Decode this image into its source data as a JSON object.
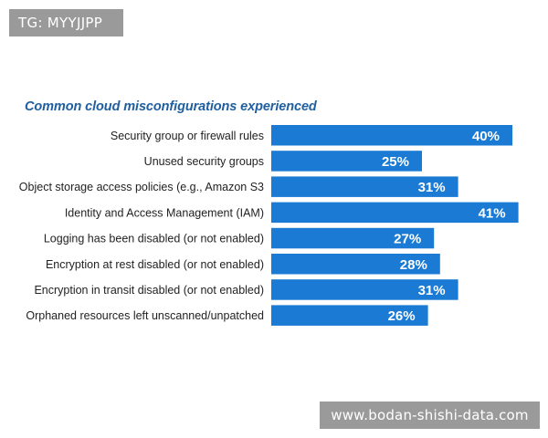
{
  "watermarks": {
    "top": "TG: MYYJJPP",
    "bottom": "www.bodan-shishi-data.com"
  },
  "chart_data": {
    "type": "bar",
    "orientation": "horizontal",
    "title": "Common cloud misconfigurations experienced",
    "categories": [
      "Security group or firewall rules",
      "Unused security groups",
      "Object storage access policies (e.g., Amazon S3",
      "Identity and Access Management (IAM)",
      "Logging has been disabled (or not enabled)",
      "Encryption at rest disabled (or not enabled)",
      "Encryption in transit disabled (or not enabled)",
      "Orphaned resources left unscanned/unpatched"
    ],
    "values": [
      40,
      25,
      31,
      41,
      27,
      28,
      31,
      26
    ],
    "value_labels": [
      "40%",
      "25%",
      "31%",
      "41%",
      "27%",
      "28%",
      "31%",
      "26%"
    ],
    "unit": "%",
    "grid": false,
    "legend": "none",
    "colors": {
      "bar": "#1a7ad4",
      "title": "#1f5fa0",
      "value_text": "#ffffff",
      "category_text": "#222222"
    }
  }
}
